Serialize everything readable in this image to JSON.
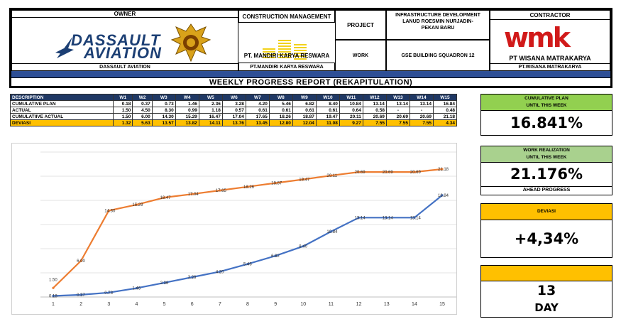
{
  "header": {
    "owner_label": "OWNER",
    "owner_logo_line1": "DASSAULT",
    "owner_logo_line2": "AVIATION",
    "owner_name": "DASSAULT AVIATION",
    "cm_label": "CONSTRUCTION MANAGEMENT",
    "cm_logo_text": "PT. MANDIRI KARYA RESWARA",
    "cm_name": "PT.MANDIRI KARYA RESWARA",
    "project_label": "PROJECT",
    "project_value_1": "INFRASTRUCTURE DEVELOPMENT",
    "project_value_2": "LANUD ROESMIN NURJADIN-",
    "project_value_3": "PEKAN BARU",
    "work_label": "WORK",
    "work_value": "GSE BUILDING SQUADRON 12",
    "contractor_label": "CONTRACTOR",
    "contractor_logo": "wmk",
    "contractor_logo_text": "PT WISANA MATRAKARYA",
    "contractor_name": "PT.WISANA MATRAKARYA",
    "report_title": "WEEKLY PROGRESS REPORT (REKAPITULATION)"
  },
  "table": {
    "header_label": "DESCRIPTION",
    "weeks": [
      "W1",
      "W2",
      "W3",
      "W4",
      "W5",
      "W6",
      "W7",
      "W8",
      "W9",
      "W10",
      "W11",
      "W12",
      "W13",
      "W14",
      "W15"
    ],
    "rows": [
      {
        "label": "CUMULATIVE PLAN",
        "values": [
          "0.18",
          "0.37",
          "0.73",
          "1.46",
          "2.36",
          "3.28",
          "4.20",
          "5.46",
          "6.82",
          "8.40",
          "10.84",
          "13.14",
          "13.14",
          "13.14",
          "16.84"
        ]
      },
      {
        "label": "ACTUAL",
        "values": [
          "1.50",
          "4.50",
          "8.30",
          "0.99",
          "1.18",
          "0.57",
          "0.61",
          "0.61",
          "0.61",
          "0.61",
          "0.64",
          "0.58",
          "-",
          "-",
          "0.48"
        ]
      },
      {
        "label": "CUMULATIIVE ACTUAL",
        "values": [
          "1.50",
          "6.00",
          "14.30",
          "15.29",
          "16.47",
          "17.04",
          "17.65",
          "18.26",
          "18.87",
          "19.47",
          "20.11",
          "20.69",
          "20.69",
          "20.69",
          "21.18"
        ]
      },
      {
        "label": "DEVIASI",
        "values": [
          "1.32",
          "5.63",
          "13.57",
          "13.82",
          "14.11",
          "13.76",
          "13.45",
          "12.80",
          "12.04",
          "11.08",
          "9.27",
          "7.55",
          "7.55",
          "7.55",
          "4.34"
        ]
      }
    ]
  },
  "cards": {
    "plan_cap1": "CUMULATIVE PLAN",
    "plan_cap2": "UNTIL THIS WEEK",
    "plan_value": "16.841%",
    "real_cap1": "WORK REALIZATION",
    "real_cap2": "UNTIL THIS WEEK",
    "real_value": "21.176%",
    "real_status": "AHEAD PROGRESS",
    "dev_cap": "DEVIASI",
    "dev_value": "+4,34%",
    "day_value": "13",
    "day_unit": "DAY"
  },
  "colors": {
    "navy": "#1f3864",
    "plan_line": "#4472c4",
    "actual_line": "#ed7d31",
    "green_cap": "#92d050",
    "orange_cap": "#ffc000",
    "red_logo": "#d11a1a"
  },
  "chart_data": {
    "type": "line",
    "x": [
      1,
      2,
      3,
      4,
      5,
      6,
      7,
      8,
      9,
      10,
      11,
      12,
      13,
      14,
      15
    ],
    "series": [
      {
        "values": [
          0.18,
          0.37,
          0.73,
          1.46,
          2.36,
          3.28,
          4.2,
          5.46,
          6.82,
          8.4,
          10.84,
          13.14,
          13.14,
          13.14,
          16.84
        ],
        "labels": [
          "0.18",
          "0.37",
          "0.73",
          "1.46",
          "2.36",
          "3.28",
          "4.20",
          "5.46",
          "6.82",
          "8.40",
          "10.84",
          "13.14",
          "13.14",
          "13.14",
          "16.84"
        ],
        "color": "#4472c4"
      },
      {
        "values": [
          1.5,
          6.0,
          14.3,
          15.29,
          16.47,
          17.04,
          17.65,
          18.26,
          18.87,
          19.47,
          20.11,
          20.69,
          20.69,
          20.69,
          21.18
        ],
        "labels": [
          "1.50",
          "6.00",
          "14.30",
          "15.29",
          "16.47",
          "17.04",
          "17.65",
          "18.26",
          "18.87",
          "19.47",
          "20.11",
          "20.69",
          "20.69",
          "20.69",
          "21.18"
        ],
        "color": "#ed7d31"
      }
    ],
    "ylim": [
      0,
      24
    ],
    "grid": true,
    "title": "",
    "xlabel": "",
    "ylabel": ""
  }
}
